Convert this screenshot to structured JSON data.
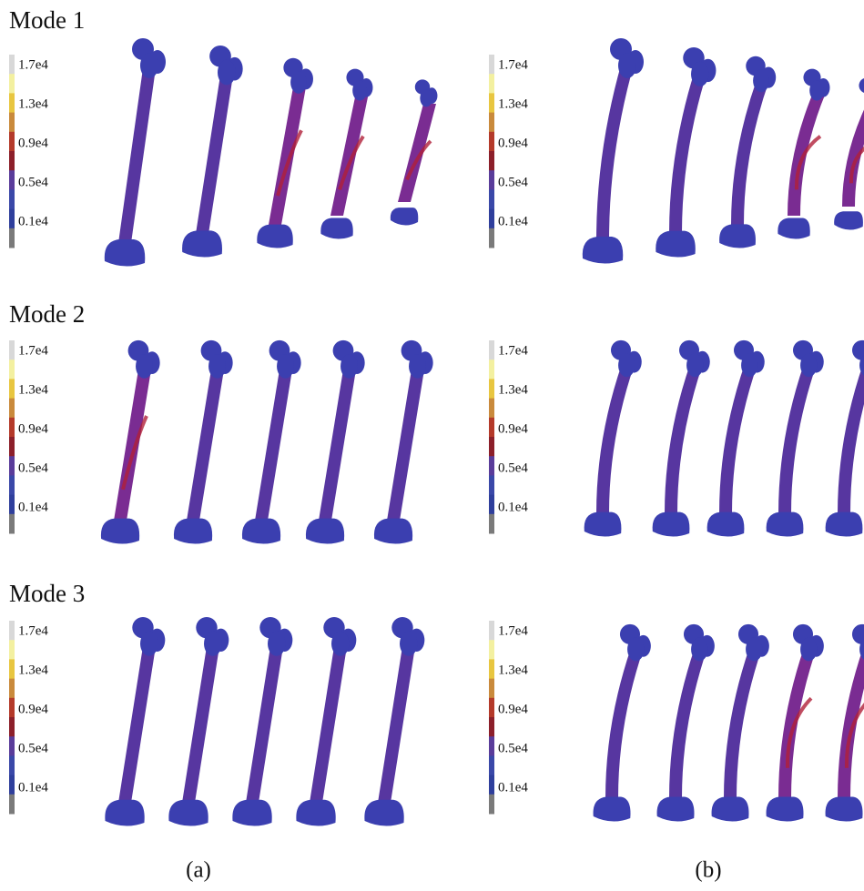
{
  "rows": [
    {
      "label": "Mode 1"
    },
    {
      "label": "Mode 2"
    },
    {
      "label": "Mode 3"
    }
  ],
  "colorbar": {
    "labels": [
      "1.7e4",
      "1.3e4",
      "0.9e4",
      "0.5e4",
      "0.1e4"
    ]
  },
  "panels": [
    "(a)",
    "(b)"
  ]
}
